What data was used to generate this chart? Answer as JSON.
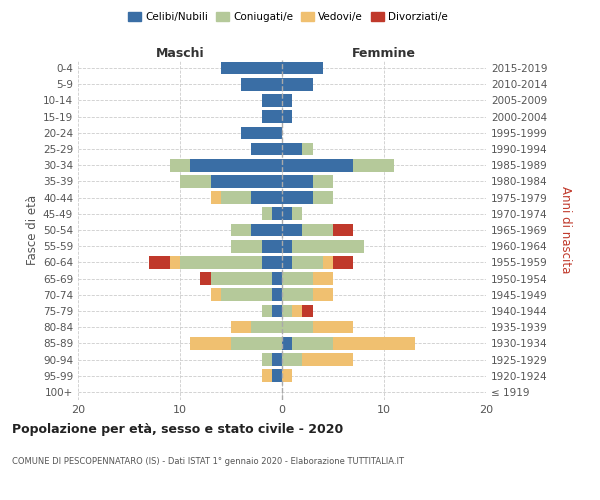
{
  "age_groups": [
    "100+",
    "95-99",
    "90-94",
    "85-89",
    "80-84",
    "75-79",
    "70-74",
    "65-69",
    "60-64",
    "55-59",
    "50-54",
    "45-49",
    "40-44",
    "35-39",
    "30-34",
    "25-29",
    "20-24",
    "15-19",
    "10-14",
    "5-9",
    "0-4"
  ],
  "birth_years": [
    "≤ 1919",
    "1920-1924",
    "1925-1929",
    "1930-1934",
    "1935-1939",
    "1940-1944",
    "1945-1949",
    "1950-1954",
    "1955-1959",
    "1960-1964",
    "1965-1969",
    "1970-1974",
    "1975-1979",
    "1980-1984",
    "1985-1989",
    "1990-1994",
    "1995-1999",
    "2000-2004",
    "2005-2009",
    "2010-2014",
    "2015-2019"
  ],
  "male_celibi": [
    0,
    1,
    1,
    0,
    0,
    1,
    1,
    1,
    2,
    2,
    3,
    1,
    3,
    7,
    9,
    3,
    4,
    2,
    2,
    4,
    6
  ],
  "male_coniugati": [
    0,
    0,
    1,
    5,
    3,
    1,
    5,
    6,
    8,
    3,
    2,
    1,
    3,
    3,
    2,
    0,
    0,
    0,
    0,
    0,
    0
  ],
  "male_vedovi": [
    0,
    1,
    0,
    4,
    2,
    0,
    1,
    0,
    1,
    0,
    0,
    0,
    1,
    0,
    0,
    0,
    0,
    0,
    0,
    0,
    0
  ],
  "male_divorziati": [
    0,
    0,
    0,
    0,
    0,
    0,
    0,
    1,
    2,
    0,
    0,
    0,
    0,
    0,
    0,
    0,
    0,
    0,
    0,
    0,
    0
  ],
  "female_nubili": [
    0,
    0,
    0,
    1,
    0,
    0,
    0,
    0,
    1,
    1,
    2,
    1,
    3,
    3,
    7,
    2,
    0,
    1,
    1,
    3,
    4
  ],
  "female_coniugate": [
    0,
    0,
    2,
    4,
    3,
    1,
    3,
    3,
    3,
    7,
    3,
    1,
    2,
    2,
    4,
    1,
    0,
    0,
    0,
    0,
    0
  ],
  "female_vedove": [
    0,
    1,
    5,
    8,
    4,
    1,
    2,
    2,
    1,
    0,
    0,
    0,
    0,
    0,
    0,
    0,
    0,
    0,
    0,
    0,
    0
  ],
  "female_divorziate": [
    0,
    0,
    0,
    0,
    0,
    1,
    0,
    0,
    2,
    0,
    2,
    0,
    0,
    0,
    0,
    0,
    0,
    0,
    0,
    0,
    0
  ],
  "color_celibi": "#3a6ea5",
  "color_coniugati": "#b5c99a",
  "color_vedovi": "#f0c070",
  "color_divorziati": "#c0392b",
  "xlim": 20,
  "title": "Popolazione per età, sesso e stato civile - 2020",
  "subtitle": "COMUNE DI PESCOPENNATARO (IS) - Dati ISTAT 1° gennaio 2020 - Elaborazione TUTTITALIA.IT",
  "label_maschi": "Maschi",
  "label_femmine": "Femmine",
  "ylabel_left": "Fasce di età",
  "ylabel_right": "Anni di nascita",
  "legend_labels": [
    "Celibi/Nubili",
    "Coniugati/e",
    "Vedovi/e",
    "Divorziati/e"
  ],
  "bg_color": "#ffffff",
  "grid_color": "#cccccc",
  "text_color": "#555555",
  "title_color": "#222222"
}
